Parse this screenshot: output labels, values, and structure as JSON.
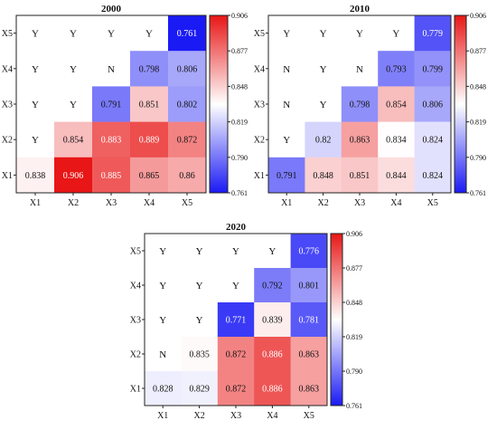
{
  "chart_data": [
    {
      "type": "heatmap",
      "title": "2000",
      "x": [
        "X1",
        "X2",
        "X3",
        "X4",
        "X5"
      ],
      "y": [
        "X5",
        "X4",
        "X3",
        "X2",
        "X1"
      ],
      "cells": [
        [
          "",
          "Y",
          "Y",
          "Y",
          "Y",
          "0.761"
        ],
        [
          "",
          "Y",
          "Y",
          "N",
          "0.798",
          "0.806"
        ],
        [
          "",
          "Y",
          "Y",
          "0.791",
          "0.851",
          "0.802"
        ],
        [
          "",
          "Y",
          "0.854",
          "0.883",
          "0.889",
          "0.872"
        ],
        [
          "",
          "0.838",
          "0.906",
          "0.885",
          "0.865",
          "0.86"
        ]
      ],
      "colorbar": {
        "min": 0.761,
        "max": 0.906,
        "ticks": [
          "0.906",
          "0.877",
          "0.848",
          "0.819",
          "0.790",
          "0.761"
        ]
      }
    },
    {
      "type": "heatmap",
      "title": "2010",
      "x": [
        "X1",
        "X2",
        "X3",
        "X4",
        "X5"
      ],
      "y": [
        "X5",
        "X4",
        "X3",
        "X2",
        "X1"
      ],
      "cells": [
        [
          "",
          "Y",
          "Y",
          "Y",
          "Y",
          "0.779"
        ],
        [
          "",
          "N",
          "Y",
          "N",
          "0.793",
          "0.799"
        ],
        [
          "",
          "N",
          "Y",
          "0.798",
          "0.854",
          "0.806"
        ],
        [
          "",
          "Y",
          "0.82",
          "0.863",
          "0.834",
          "0.824"
        ],
        [
          "",
          "0.791",
          "0.848",
          "0.851",
          "0.844",
          "0.824"
        ]
      ],
      "colorbar": {
        "min": 0.761,
        "max": 0.906,
        "ticks": [
          "0.906",
          "0.877",
          "0.848",
          "0.819",
          "0.790",
          "0.761"
        ]
      }
    },
    {
      "type": "heatmap",
      "title": "2020",
      "x": [
        "X1",
        "X2",
        "X3",
        "X4",
        "X5"
      ],
      "y": [
        "X5",
        "X4",
        "X3",
        "X2",
        "X1"
      ],
      "cells": [
        [
          "",
          "Y",
          "Y",
          "Y",
          "Y",
          "0.776"
        ],
        [
          "",
          "Y",
          "Y",
          "Y",
          "0.792",
          "0.801"
        ],
        [
          "",
          "Y",
          "Y",
          "0.771",
          "0.839",
          "0.781"
        ],
        [
          "",
          "N",
          "0.835",
          "0.872",
          "0.886",
          "0.863"
        ],
        [
          "",
          "0.828",
          "0.829",
          "0.872",
          "0.886",
          "0.863"
        ]
      ],
      "colorbar": {
        "min": 0.761,
        "max": 0.906,
        "ticks": [
          "0.906",
          "0.877",
          "0.848",
          "0.819",
          "0.790",
          "0.761"
        ]
      }
    }
  ]
}
